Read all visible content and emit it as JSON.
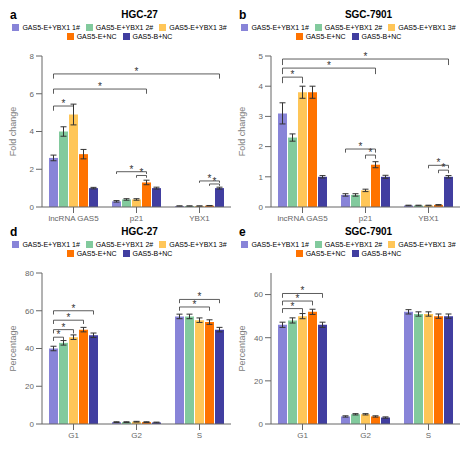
{
  "chart_data": [
    {
      "type": "bar",
      "title": "HGC-27",
      "categories": [
        "lncRNA GAS5",
        "p21",
        "YBX1"
      ],
      "ylabel": "Fold change",
      "ylim": [
        0,
        8
      ],
      "yticks": [
        0,
        2,
        4,
        6,
        8
      ],
      "grid": false,
      "legend": "top",
      "series": [
        {
          "name": "GAS5-E+YBX1 1#",
          "color": "#8884d8",
          "values": [
            2.6,
            0.3,
            0.05
          ],
          "errors": [
            0.15,
            0.04,
            0.01
          ]
        },
        {
          "name": "GAS5-E+YBX1 2#",
          "color": "#82ca9d",
          "values": [
            4.0,
            0.4,
            0.05
          ],
          "errors": [
            0.25,
            0.04,
            0.01
          ]
        },
        {
          "name": "GAS5-E+YBX1 3#",
          "color": "#ffc658",
          "values": [
            4.9,
            0.4,
            0.05
          ],
          "errors": [
            0.55,
            0.04,
            0.01
          ]
        },
        {
          "name": "GAS5-E+NC",
          "color": "#ff7300",
          "values": [
            2.8,
            1.3,
            0.07
          ],
          "errors": [
            0.25,
            0.12,
            0.01
          ]
        },
        {
          "name": "GAS5-B+NC",
          "color": "#413ea0",
          "values": [
            1.0,
            1.0,
            1.0
          ],
          "errors": [
            0.04,
            0.05,
            0.05
          ]
        }
      ],
      "annotations": [
        {
          "text": "a"
        },
        {
          "text": "*",
          "from": [
            "lncRNA GAS5",
            "GAS5-E+YBX1 1#"
          ],
          "to": [
            "lncRNA GAS5",
            "GAS5-E+YBX1 3#"
          ],
          "y": 5.1,
          "y_top": 5.35
        },
        {
          "text": "*",
          "from": [
            "lncRNA GAS5",
            "GAS5-E+YBX1 1#"
          ],
          "to": [
            "p21",
            "GAS5-E+NC"
          ],
          "y": 6.0,
          "y_top": 6.25
        },
        {
          "text": "*",
          "from": [
            "lncRNA GAS5",
            "GAS5-E+YBX1 1#"
          ],
          "to": [
            "YBX1",
            "GAS5-B+NC"
          ],
          "y": 6.8,
          "y_top": 7.05
        },
        {
          "text": "*",
          "from": [
            "p21",
            "GAS5-E+YBX1 3#"
          ],
          "to": [
            "p21",
            "GAS5-E+NC"
          ],
          "y": 1.55,
          "y_top": 1.67
        },
        {
          "text": "*",
          "from": [
            "p21",
            "GAS5-E+YBX1 1#"
          ],
          "to": [
            "p21",
            "GAS5-E+NC"
          ],
          "y": 1.75,
          "y_top": 1.87
        },
        {
          "text": "*",
          "from": [
            "YBX1",
            "GAS5-E+NC"
          ],
          "to": [
            "YBX1",
            "GAS5-B+NC"
          ],
          "y": 1.12,
          "y_top": 1.22
        },
        {
          "text": "*",
          "from": [
            "YBX1",
            "GAS5-E+YBX1 3#"
          ],
          "to": [
            "YBX1",
            "GAS5-B+NC"
          ],
          "y": 1.28,
          "y_top": 1.38
        }
      ]
    },
    {
      "type": "bar",
      "title": "SGC-7901",
      "categories": [
        "lncRNA GAS5",
        "p21",
        "YBX1"
      ],
      "ylabel": "Fold change",
      "ylim": [
        0,
        5
      ],
      "yticks": [
        0,
        1,
        2,
        3,
        4,
        5
      ],
      "grid": false,
      "legend": "top",
      "series": [
        {
          "name": "GAS5-E+YBX1 1#",
          "color": "#8884d8",
          "values": [
            3.1,
            0.4,
            0.05
          ],
          "errors": [
            0.35,
            0.04,
            0.01
          ]
        },
        {
          "name": "GAS5-E+YBX1 2#",
          "color": "#82ca9d",
          "values": [
            2.3,
            0.4,
            0.05
          ],
          "errors": [
            0.12,
            0.04,
            0.01
          ]
        },
        {
          "name": "GAS5-E+YBX1 3#",
          "color": "#ffc658",
          "values": [
            3.8,
            0.55,
            0.05
          ],
          "errors": [
            0.2,
            0.04,
            0.01
          ]
        },
        {
          "name": "GAS5-E+NC",
          "color": "#ff7300",
          "values": [
            3.8,
            1.4,
            0.07
          ],
          "errors": [
            0.2,
            0.1,
            0.01
          ]
        },
        {
          "name": "GAS5-B+NC",
          "color": "#413ea0",
          "values": [
            1.0,
            1.0,
            1.0
          ],
          "errors": [
            0.04,
            0.05,
            0.04
          ]
        }
      ],
      "annotations": [
        {
          "text": "b"
        },
        {
          "text": "*",
          "from": [
            "lncRNA GAS5",
            "GAS5-E+YBX1 1#"
          ],
          "to": [
            "lncRNA GAS5",
            "GAS5-E+YBX1 3#"
          ],
          "y": 4.1,
          "y_top": 4.3
        },
        {
          "text": "*",
          "from": [
            "lncRNA GAS5",
            "GAS5-E+YBX1 1#"
          ],
          "to": [
            "p21",
            "GAS5-E+NC"
          ],
          "y": 4.4,
          "y_top": 4.6
        },
        {
          "text": "*",
          "from": [
            "lncRNA GAS5",
            "GAS5-E+YBX1 1#"
          ],
          "to": [
            "YBX1",
            "GAS5-B+NC"
          ],
          "y": 4.7,
          "y_top": 4.9
        },
        {
          "text": "*",
          "from": [
            "p21",
            "GAS5-E+YBX1 3#"
          ],
          "to": [
            "p21",
            "GAS5-E+NC"
          ],
          "y": 1.6,
          "y_top": 1.72
        },
        {
          "text": "*",
          "from": [
            "p21",
            "GAS5-E+YBX1 1#"
          ],
          "to": [
            "p21",
            "GAS5-E+NC"
          ],
          "y": 1.8,
          "y_top": 1.92
        },
        {
          "text": "*",
          "from": [
            "YBX1",
            "GAS5-E+NC"
          ],
          "to": [
            "YBX1",
            "GAS5-B+NC"
          ],
          "y": 1.12,
          "y_top": 1.22
        },
        {
          "text": "*",
          "from": [
            "YBX1",
            "GAS5-E+YBX1 3#"
          ],
          "to": [
            "YBX1",
            "GAS5-B+NC"
          ],
          "y": 1.28,
          "y_top": 1.38
        }
      ]
    },
    {
      "type": "bar",
      "title": "HGC-27",
      "categories": [
        "G1",
        "G2",
        "S"
      ],
      "ylabel": "Percentage",
      "ylim": [
        0,
        80
      ],
      "yticks": [
        0,
        20,
        40,
        60,
        80
      ],
      "grid": false,
      "legend": "top",
      "series": [
        {
          "name": "GAS5-E+YBX1 1#",
          "color": "#8884d8",
          "values": [
            40,
            1.0,
            57
          ],
          "errors": [
            1.2,
            0.2,
            1.2
          ]
        },
        {
          "name": "GAS5-E+YBX1 2#",
          "color": "#82ca9d",
          "values": [
            43,
            1.0,
            57
          ],
          "errors": [
            1.2,
            0.2,
            1.2
          ]
        },
        {
          "name": "GAS5-E+YBX1 3#",
          "color": "#ffc658",
          "values": [
            46,
            1.2,
            55
          ],
          "errors": [
            1.2,
            0.2,
            1.2
          ]
        },
        {
          "name": "GAS5-E+NC",
          "color": "#ff7300",
          "values": [
            50,
            1.0,
            54
          ],
          "errors": [
            1.2,
            0.2,
            1.2
          ]
        },
        {
          "name": "GAS5-B+NC",
          "color": "#413ea0",
          "values": [
            47,
            0.8,
            50
          ],
          "errors": [
            1.2,
            0.2,
            1.2
          ]
        }
      ],
      "annotations": [
        {
          "text": "d"
        },
        {
          "text": "*",
          "from": [
            "G1",
            "GAS5-E+YBX1 1#"
          ],
          "to": [
            "G1",
            "GAS5-E+YBX1 2#"
          ],
          "y": 44,
          "y_top": 46
        },
        {
          "text": "*",
          "from": [
            "G1",
            "GAS5-E+YBX1 1#"
          ],
          "to": [
            "G1",
            "GAS5-E+YBX1 3#"
          ],
          "y": 48,
          "y_top": 50
        },
        {
          "text": "*",
          "from": [
            "G1",
            "GAS5-E+YBX1 1#"
          ],
          "to": [
            "G1",
            "GAS5-E+NC"
          ],
          "y": 53,
          "y_top": 55
        },
        {
          "text": "*",
          "from": [
            "G1",
            "GAS5-E+YBX1 1#"
          ],
          "to": [
            "G1",
            "GAS5-B+NC"
          ],
          "y": 58,
          "y_top": 60
        },
        {
          "text": "*",
          "from": [
            "S",
            "GAS5-E+YBX1 1#"
          ],
          "to": [
            "S",
            "GAS5-E+NC"
          ],
          "y": 60,
          "y_top": 62
        },
        {
          "text": "*",
          "from": [
            "S",
            "GAS5-E+YBX1 1#"
          ],
          "to": [
            "S",
            "GAS5-B+NC"
          ],
          "y": 64,
          "y_top": 66
        }
      ]
    },
    {
      "type": "bar",
      "title": "SGC-7901",
      "categories": [
        "G1",
        "G2",
        "S"
      ],
      "ylabel": "Percentage",
      "ylim": [
        0,
        70
      ],
      "yticks": [
        0,
        20,
        40,
        60
      ],
      "grid": false,
      "legend": "top",
      "series": [
        {
          "name": "GAS5-E+YBX1 1#",
          "color": "#8884d8",
          "values": [
            46,
            3.5,
            52
          ],
          "errors": [
            1.2,
            0.3,
            1.0
          ]
        },
        {
          "name": "GAS5-E+YBX1 2#",
          "color": "#82ca9d",
          "values": [
            48,
            4.5,
            51
          ],
          "errors": [
            1.2,
            0.3,
            1.0
          ]
        },
        {
          "name": "GAS5-E+YBX1 3#",
          "color": "#ffc658",
          "values": [
            50,
            4.5,
            51
          ],
          "errors": [
            1.2,
            0.3,
            1.0
          ]
        },
        {
          "name": "GAS5-E+NC",
          "color": "#ff7300",
          "values": [
            52,
            3.5,
            50
          ],
          "errors": [
            1.2,
            0.3,
            1.0
          ]
        },
        {
          "name": "GAS5-B+NC",
          "color": "#413ea0",
          "values": [
            46,
            3.0,
            50
          ],
          "errors": [
            1.2,
            0.3,
            1.0
          ]
        }
      ],
      "annotations": [
        {
          "text": "e"
        },
        {
          "text": "*",
          "from": [
            "G1",
            "GAS5-E+YBX1 1#"
          ],
          "to": [
            "G1",
            "GAS5-E+YBX1 3#"
          ],
          "y": 51.5,
          "y_top": 53.5
        },
        {
          "text": "*",
          "from": [
            "G1",
            "GAS5-E+YBX1 1#"
          ],
          "to": [
            "G1",
            "GAS5-E+NC"
          ],
          "y": 55,
          "y_top": 57
        },
        {
          "text": "*",
          "from": [
            "G1",
            "GAS5-E+YBX1 1#"
          ],
          "to": [
            "G1",
            "GAS5-B+NC"
          ],
          "y": 58.5,
          "y_top": 60.5
        }
      ]
    }
  ]
}
